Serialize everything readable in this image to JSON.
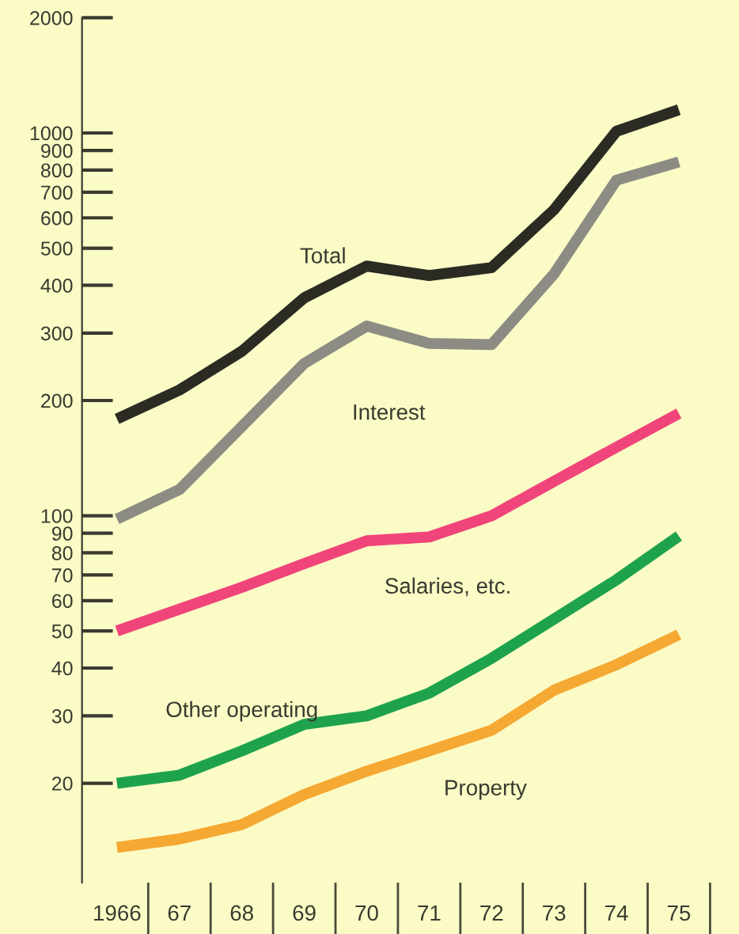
{
  "chart_data": {
    "type": "line",
    "log": true,
    "grid": false,
    "legend": false,
    "marker": "none",
    "line_style": "solid",
    "categories": [
      "1966",
      "67",
      "68",
      "69",
      "70",
      "71",
      "72",
      "73",
      "74",
      "75"
    ],
    "ylim": [
      11,
      2000
    ],
    "yticks": [
      20,
      30,
      40,
      50,
      60,
      70,
      80,
      90,
      100,
      200,
      300,
      400,
      500,
      600,
      700,
      800,
      900,
      1000,
      2000
    ],
    "series": [
      {
        "name": "Total",
        "color": "#2b2b24",
        "values": [
          179,
          213,
          269,
          371,
          449,
          424,
          445,
          630,
          1010,
          1150
        ]
      },
      {
        "name": "Interest",
        "color": "#8c8c84",
        "values": [
          98,
          117,
          171,
          250,
          313,
          282,
          280,
          428,
          753,
          840
        ]
      },
      {
        "name": "Salaries, etc.",
        "color": "#f0457a",
        "values": [
          50,
          57,
          65,
          75,
          86,
          88,
          100,
          123,
          151,
          185
        ]
      },
      {
        "name": "Other operating",
        "color": "#1ea34c",
        "values": [
          20,
          21,
          24.3,
          28.5,
          30,
          34.4,
          42.4,
          53.7,
          68,
          88.5
        ]
      },
      {
        "name": "Property",
        "color": "#f5a832",
        "values": [
          13.6,
          14.3,
          15.6,
          18.7,
          21.5,
          24.3,
          27.5,
          35,
          40.8,
          48.9
        ]
      }
    ]
  }
}
